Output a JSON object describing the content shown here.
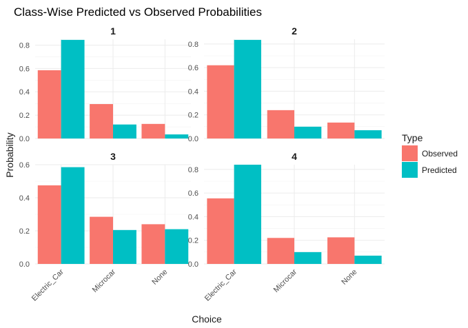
{
  "chart_data": {
    "type": "bar",
    "title": "Class-Wise Predicted vs Observed Probabilities",
    "xlabel": "Choice",
    "ylabel": "Probability",
    "categories": [
      "Electric_Car",
      "Microcar",
      "None"
    ],
    "legend": {
      "title": "Type",
      "placement": "right",
      "entries": [
        {
          "name": "Observed",
          "color": "#F8766D"
        },
        {
          "name": "Predicted",
          "color": "#00BFC4"
        }
      ]
    },
    "grid": true,
    "facets": [
      {
        "label": "1",
        "ylim": [
          0,
          0.85
        ],
        "yticks": [
          0.0,
          0.2,
          0.4,
          0.6,
          0.8
        ],
        "series": [
          {
            "name": "Observed",
            "values": [
              0.585,
              0.295,
              0.125
            ]
          },
          {
            "name": "Predicted",
            "values": [
              0.845,
              0.12,
              0.035
            ]
          }
        ]
      },
      {
        "label": "2",
        "ylim": [
          0,
          0.84
        ],
        "yticks": [
          0.0,
          0.2,
          0.4,
          0.6,
          0.8
        ],
        "series": [
          {
            "name": "Observed",
            "values": [
              0.62,
              0.24,
              0.135
            ]
          },
          {
            "name": "Predicted",
            "values": [
              0.835,
              0.1,
              0.07
            ]
          }
        ]
      },
      {
        "label": "3",
        "ylim": [
          0,
          0.6
        ],
        "yticks": [
          0.0,
          0.2,
          0.4,
          0.6
        ],
        "series": [
          {
            "name": "Observed",
            "values": [
              0.475,
              0.285,
              0.24
            ]
          },
          {
            "name": "Predicted",
            "values": [
              0.585,
              0.205,
              0.21
            ]
          }
        ]
      },
      {
        "label": "4",
        "ylim": [
          0,
          0.84
        ],
        "yticks": [
          0.0,
          0.2,
          0.4,
          0.6,
          0.8
        ],
        "series": [
          {
            "name": "Observed",
            "values": [
              0.555,
              0.22,
              0.225
            ]
          },
          {
            "name": "Predicted",
            "values": [
              0.84,
              0.1,
              0.07
            ]
          }
        ]
      }
    ]
  }
}
